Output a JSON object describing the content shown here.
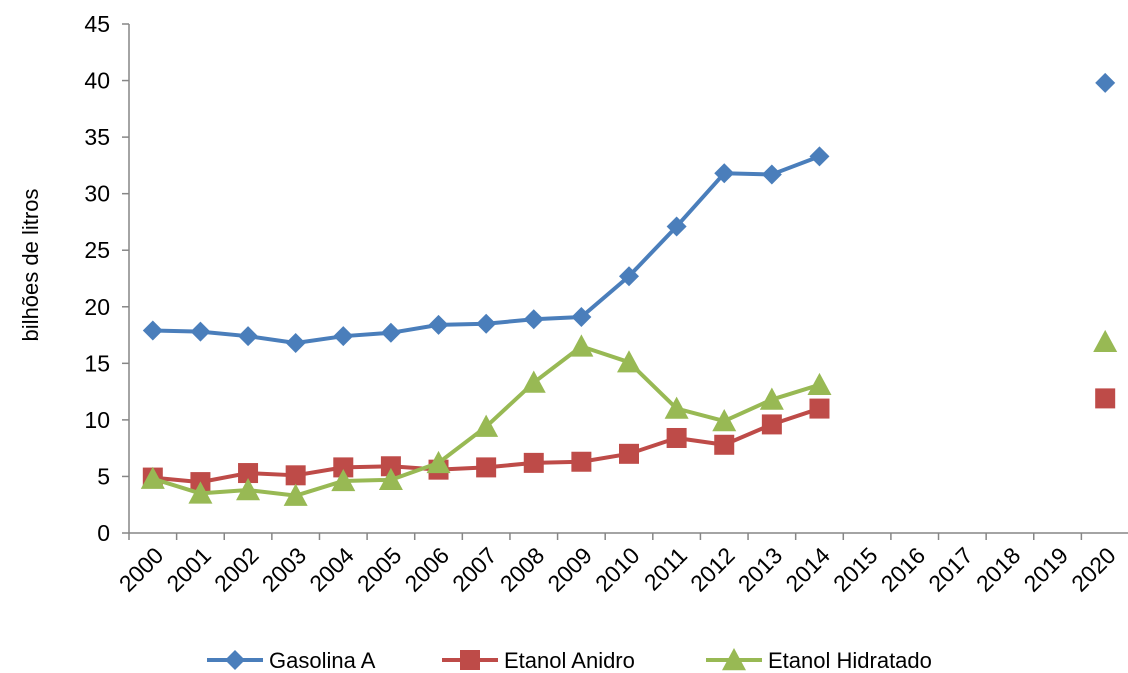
{
  "chart_data": {
    "type": "line",
    "title": "",
    "xlabel": "",
    "ylabel": "bilhões de litros",
    "categories": [
      "2000",
      "2001",
      "2002",
      "2003",
      "2004",
      "2005",
      "2006",
      "2007",
      "2008",
      "2009",
      "2010",
      "2011",
      "2012",
      "2013",
      "2014",
      "2015",
      "2016",
      "2017",
      "2018",
      "2019",
      "2020"
    ],
    "yticks": [
      "0",
      "5",
      "10",
      "15",
      "20",
      "25",
      "30",
      "35",
      "40",
      "45"
    ],
    "ylim": [
      0,
      45
    ],
    "grid": false,
    "legend_position": "bottom",
    "series": [
      {
        "name": "Gasolina A",
        "color": "#4a7ebb",
        "marker": "diamond",
        "values": [
          17.9,
          17.8,
          17.4,
          16.8,
          17.4,
          17.7,
          18.4,
          18.5,
          18.9,
          19.1,
          22.7,
          27.1,
          31.8,
          31.7,
          33.3,
          null,
          null,
          null,
          null,
          null,
          39.8
        ]
      },
      {
        "name": "Etanol Anidro",
        "color": "#be4b48",
        "marker": "square",
        "values": [
          4.9,
          4.5,
          5.3,
          5.1,
          5.8,
          5.9,
          5.6,
          5.8,
          6.2,
          6.3,
          7.0,
          8.4,
          7.8,
          9.6,
          11.0,
          null,
          null,
          null,
          null,
          null,
          11.9
        ]
      },
      {
        "name": "Etanol Hidratado",
        "color": "#98b954",
        "marker": "triangle",
        "values": [
          4.8,
          3.5,
          3.8,
          3.3,
          4.6,
          4.7,
          6.2,
          9.4,
          13.3,
          16.5,
          15.1,
          11.0,
          9.9,
          11.8,
          13.1,
          null,
          null,
          null,
          null,
          null,
          16.9
        ]
      }
    ]
  }
}
